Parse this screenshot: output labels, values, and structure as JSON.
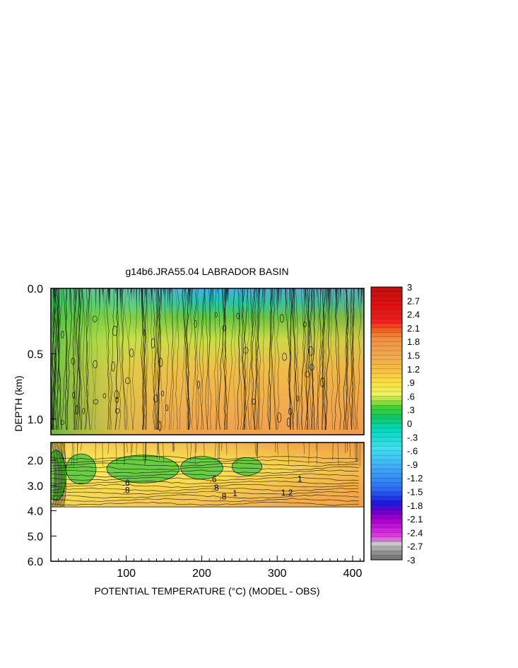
{
  "chart_data": {
    "type": "heatmap",
    "title": "g14b6.JRA55.04 LABRADOR BASIN",
    "xlabel": "POTENTIAL TEMPERATURE (°C) (MODEL - OBS)",
    "ylabel": "DEPTH (km)",
    "xlim": [
      0,
      415
    ],
    "x_ticks": [
      "100",
      "200",
      "300",
      "400"
    ],
    "panels": [
      {
        "name": "upper",
        "ylim": [
          0,
          1.12
        ],
        "y_ticks": [
          "0.0",
          "0.5",
          "1.0"
        ]
      },
      {
        "name": "lower",
        "ylim": [
          1.3,
          6.0
        ],
        "y_ticks": [
          "2.0",
          "3.0",
          "4.0",
          "5.0",
          "6.0"
        ]
      }
    ],
    "data_bottom_km": 3.85,
    "colorbar": {
      "min": -3,
      "max": 3,
      "step": 0.1,
      "labels": [
        "3",
        "2.7",
        "2.4",
        "2.1",
        "1.8",
        "1.5",
        "1.2",
        ".9",
        ".6",
        ".3",
        "0",
        "-.3",
        "-.6",
        "-.9",
        "-1.2",
        "-1.5",
        "-1.8",
        "-2.1",
        "-2.4",
        "-2.7",
        "-3"
      ],
      "anchors": [
        [
          -3.0,
          "#6e6e6e"
        ],
        [
          -2.8,
          "#9a9a9a"
        ],
        [
          -2.65,
          "#c8c8c8"
        ],
        [
          -2.5,
          "#e040e0"
        ],
        [
          -2.15,
          "#b000d0"
        ],
        [
          -1.95,
          "#7000c8"
        ],
        [
          -1.75,
          "#1a1ae0"
        ],
        [
          -1.45,
          "#2a6af0"
        ],
        [
          -1.0,
          "#40a8f8"
        ],
        [
          -0.55,
          "#40e0f0"
        ],
        [
          -0.15,
          "#00d8c0"
        ],
        [
          0.15,
          "#10c860"
        ],
        [
          0.35,
          "#40d030"
        ],
        [
          0.5,
          "#a8e040"
        ],
        [
          0.65,
          "#f0f060"
        ],
        [
          0.9,
          "#f8e040"
        ],
        [
          1.15,
          "#f8c040"
        ],
        [
          1.5,
          "#f0a850"
        ],
        [
          1.85,
          "#f09040"
        ],
        [
          2.05,
          "#f06020"
        ],
        [
          2.25,
          "#f02020"
        ],
        [
          2.6,
          "#e01010"
        ],
        [
          3.0,
          "#c01010"
        ]
      ]
    },
    "contour_labels": [
      {
        "text": ".6",
        "x": 100,
        "depth": 3.0
      },
      {
        "text": ".8",
        "x": 100,
        "depth": 3.3
      },
      {
        "text": ".6",
        "x": 215,
        "depth": 2.87
      },
      {
        "text": ".8",
        "x": 218,
        "depth": 3.2
      },
      {
        "text": ".8",
        "x": 228,
        "depth": 3.55
      },
      {
        "text": "1",
        "x": 244,
        "depth": 3.43
      },
      {
        "text": "1.2",
        "x": 313,
        "depth": 3.4
      },
      {
        "text": "1",
        "x": 330,
        "depth": 2.85
      }
    ]
  }
}
